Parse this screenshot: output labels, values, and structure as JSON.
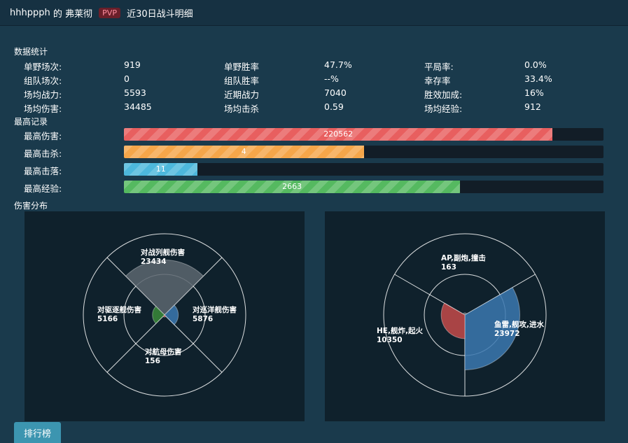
{
  "header": {
    "player": "hhhppph",
    "of": "的",
    "ship": "弗莱彻",
    "mode": "PVP",
    "subtitle": "近30日战斗明细"
  },
  "stats_section": {
    "title": "数据统计"
  },
  "stats": [
    [
      {
        "label": "单野场次:",
        "value": "919"
      },
      {
        "label": "单野胜率",
        "value": "47.7%"
      },
      {
        "label": "平局率:",
        "value": "0.0%"
      }
    ],
    [
      {
        "label": "组队场次:",
        "value": "0"
      },
      {
        "label": "组队胜率",
        "value": "--%"
      },
      {
        "label": "幸存率",
        "value": "33.4%"
      }
    ],
    [
      {
        "label": "场均战力:",
        "value": "5593"
      },
      {
        "label": "近期战力",
        "value": "7040"
      },
      {
        "label": "胜效加成:",
        "value": "16%"
      }
    ],
    [
      {
        "label": "场均伤害:",
        "value": "34485"
      },
      {
        "label": "场均击杀",
        "value": "0.59"
      },
      {
        "label": "场均经验:",
        "value": "912"
      }
    ]
  ],
  "records_section": {
    "title": "最高记录"
  },
  "records": [
    {
      "label": "最高伤害:",
      "value": "220562",
      "fraction": 0.894,
      "color": "#e85f5f"
    },
    {
      "label": "最高击杀:",
      "value": "4",
      "fraction": 0.5,
      "color": "#f5a64a"
    },
    {
      "label": "最高击落:",
      "value": "11",
      "fraction": 0.154,
      "color": "#4db8dc"
    },
    {
      "label": "最高经验:",
      "value": "2663",
      "fraction": 0.701,
      "color": "#55b960"
    }
  ],
  "damage_section": {
    "title": "伤害分布"
  },
  "chart_data": [
    {
      "type": "polar-area",
      "title": "",
      "categories": [
        "对战列舰伤害",
        "对巡洋舰伤害",
        "对航母伤害",
        "对驱逐舰伤害"
      ],
      "values": [
        23434,
        5876,
        156,
        5166
      ],
      "colors": [
        "#5c6670",
        "#3b78b0",
        "#b94a4a",
        "#3a8a3a"
      ]
    },
    {
      "type": "polar-area",
      "title": "",
      "categories": [
        "AP,副炮,撞击",
        "鱼雷,舰攻,进水",
        "HE,舰炸,起火"
      ],
      "values": [
        163,
        23972,
        10350
      ],
      "colors": [
        "#5c6670",
        "#3b78b0",
        "#c44a4a"
      ]
    }
  ],
  "footer": {
    "rank_button": "排行榜"
  }
}
